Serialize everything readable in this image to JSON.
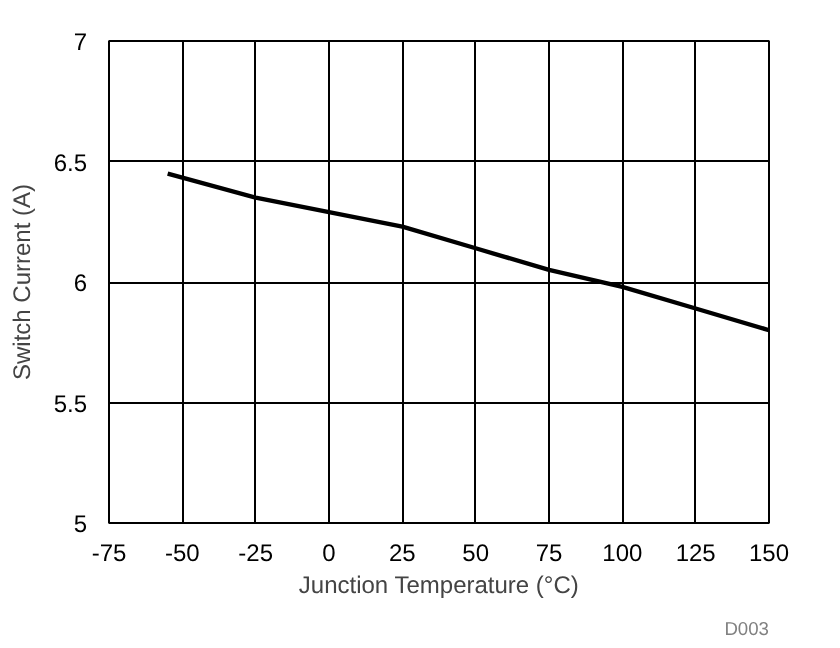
{
  "chart_data": {
    "type": "line",
    "xlabel": "Junction Temperature (°C)",
    "ylabel": "Switch Current (A)",
    "x": [
      -55,
      -25,
      0,
      25,
      50,
      75,
      100,
      125,
      150
    ],
    "series": [
      {
        "color": "#000000",
        "values": [
          6.45,
          6.35,
          6.29,
          6.23,
          6.14,
          6.05,
          5.98,
          5.89,
          5.8
        ]
      }
    ],
    "xlim": [
      -75,
      150
    ],
    "xticks": [
      -75,
      -50,
      -25,
      0,
      25,
      50,
      75,
      100,
      125,
      150
    ],
    "ylim": [
      5,
      7
    ],
    "yticks": [
      5,
      5.5,
      6,
      6.5,
      7
    ],
    "grid": true,
    "marker": "none",
    "line_style": "solid",
    "annotations": [
      "D003"
    ]
  }
}
